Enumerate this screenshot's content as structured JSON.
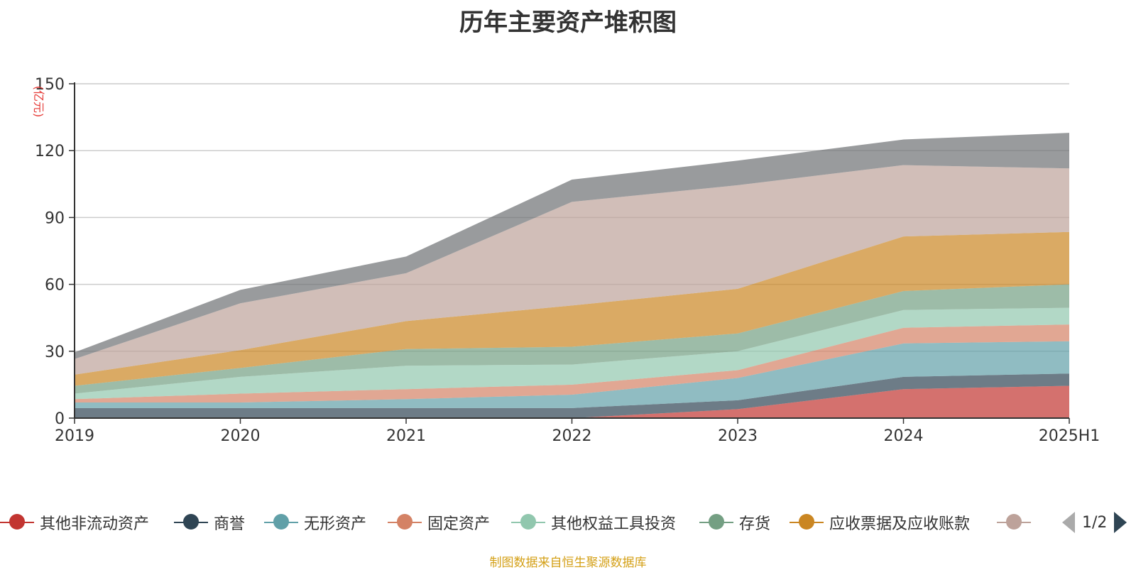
{
  "chart_data": {
    "type": "area",
    "stacked": true,
    "title": "历年主要资产堆积图",
    "ylabel": "(亿元)",
    "xlabel": "",
    "categories": [
      "2019",
      "2020",
      "2021",
      "2022",
      "2023",
      "2024",
      "2025H1"
    ],
    "ylim": [
      0,
      150
    ],
    "yticks": [
      0,
      30,
      60,
      90,
      120,
      150
    ],
    "grid": true,
    "legend_position": "bottom",
    "series": [
      {
        "name": "其他非流动资产",
        "color": "#c23531",
        "values": [
          0,
          0,
          0,
          0,
          4,
          13,
          14.5
        ]
      },
      {
        "name": "商誉",
        "color": "#2f4554",
        "values": [
          4.5,
          4.5,
          4.5,
          4.5,
          4,
          5.5,
          5.5
        ]
      },
      {
        "name": "无形资产",
        "color": "#61a0a8",
        "values": [
          2.5,
          2.5,
          4,
          6,
          10,
          15,
          14.5
        ]
      },
      {
        "name": "固定资产",
        "color": "#d48265",
        "values": [
          1.5,
          4,
          4.5,
          4.5,
          3.5,
          7,
          7.5
        ]
      },
      {
        "name": "其他权益工具投资",
        "color": "#91c7ae",
        "values": [
          2.5,
          7.5,
          10.5,
          9,
          8.5,
          8,
          7.5
        ]
      },
      {
        "name": "存货",
        "color": "#749f83",
        "values": [
          3.5,
          4,
          7.5,
          8,
          8,
          8.5,
          10.5
        ]
      },
      {
        "name": "应收票据及应收账款",
        "color": "#ca8622",
        "values": [
          5,
          8,
          12.5,
          18.5,
          20,
          24.5,
          23.5
        ]
      },
      {
        "name": "",
        "color": "#bda29a",
        "values": [
          7,
          21,
          21.5,
          46.5,
          46.5,
          32,
          28.5
        ]
      },
      {
        "name": "",
        "color": "#6e7074",
        "values": [
          3,
          6,
          7.5,
          10,
          11,
          11.5,
          16
        ]
      }
    ]
  },
  "legend": {
    "visible_count": 8,
    "page_indicator": "1/2"
  },
  "source_note": "制图数据来自恒生聚源数据库"
}
